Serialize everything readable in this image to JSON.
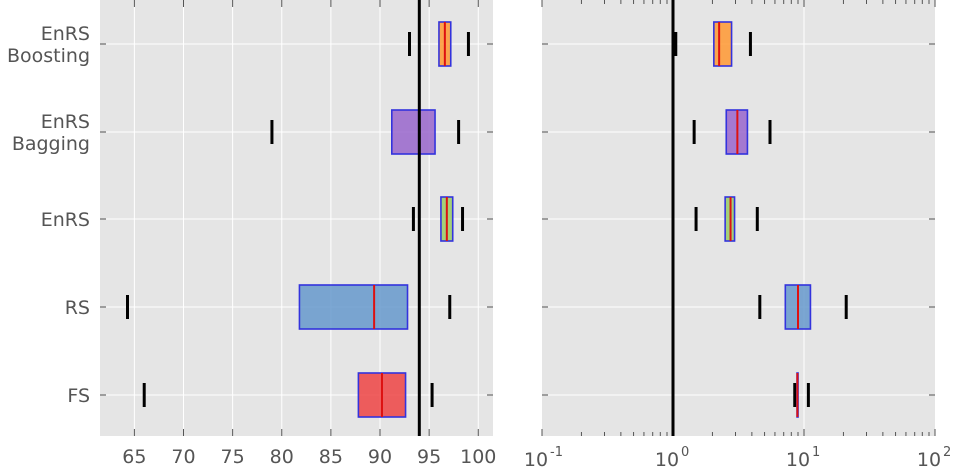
{
  "chart_data": [
    {
      "type": "box",
      "categories": [
        "EnRS\nBoosting",
        "EnRS\nBagging",
        "EnRS",
        "RS",
        "FS"
      ],
      "xscale": "linear",
      "xlim": [
        61.5,
        101.5
      ],
      "xticks": [
        65,
        70,
        75,
        80,
        85,
        90,
        95,
        100
      ],
      "xtick_labels": [
        "65",
        "70",
        "75",
        "80",
        "85",
        "90",
        "95",
        "100"
      ],
      "reference_line": 94,
      "grid": true,
      "boxes": [
        {
          "category": "EnRS\nBoosting",
          "color": "#ff9933",
          "q1": 96.0,
          "median": 96.6,
          "q3": 97.2,
          "whisker_low": 93.0,
          "whisker_high": 99.0
        },
        {
          "category": "EnRS\nBagging",
          "color": "#9966cc",
          "q1": 91.2,
          "median": 94.0,
          "q3": 95.6,
          "whisker_low": 79.0,
          "whisker_high": 98.0
        },
        {
          "category": "EnRS",
          "color": "#99cc66",
          "q1": 96.2,
          "median": 96.8,
          "q3": 97.4,
          "whisker_low": 93.4,
          "whisker_high": 98.4
        },
        {
          "category": "RS",
          "color": "#6699cc",
          "q1": 81.8,
          "median": 89.4,
          "q3": 92.8,
          "whisker_low": 64.3,
          "whisker_high": 97.1
        },
        {
          "category": "FS",
          "color": "#ee4444",
          "q1": 87.8,
          "median": 90.2,
          "q3": 92.6,
          "whisker_low": 66.0,
          "whisker_high": 95.3
        }
      ]
    },
    {
      "type": "box",
      "categories": [
        "EnRS\nBoosting",
        "EnRS\nBagging",
        "EnRS",
        "RS",
        "FS"
      ],
      "xscale": "log",
      "xlim": [
        0.1,
        100
      ],
      "xticks": [
        0.1,
        1,
        10,
        100
      ],
      "xtick_labels": [
        {
          "base": "10",
          "exp": "-1"
        },
        {
          "base": "10",
          "exp": "0"
        },
        {
          "base": "10",
          "exp": "1"
        },
        {
          "base": "10",
          "exp": "2"
        }
      ],
      "reference_line": 1,
      "grid": true,
      "boxes": [
        {
          "category": "EnRS\nBoosting",
          "color": "#ff9933",
          "q1": 2.05,
          "median": 2.25,
          "q3": 2.8,
          "whisker_low": 1.05,
          "whisker_high": 3.9
        },
        {
          "category": "EnRS\nBagging",
          "color": "#9966cc",
          "q1": 2.55,
          "median": 3.1,
          "q3": 3.7,
          "whisker_low": 1.45,
          "whisker_high": 5.5
        },
        {
          "category": "EnRS",
          "color": "#99cc66",
          "q1": 2.5,
          "median": 2.75,
          "q3": 2.95,
          "whisker_low": 1.5,
          "whisker_high": 4.4
        },
        {
          "category": "RS",
          "color": "#6699cc",
          "q1": 7.2,
          "median": 9.0,
          "q3": 11.2,
          "whisker_low": 4.6,
          "whisker_high": 21.0
        },
        {
          "category": "FS",
          "color": "#ee4444",
          "q1": 8.85,
          "median": 8.9,
          "q3": 8.95,
          "whisker_low": 8.5,
          "whisker_high": 10.8
        }
      ]
    }
  ]
}
